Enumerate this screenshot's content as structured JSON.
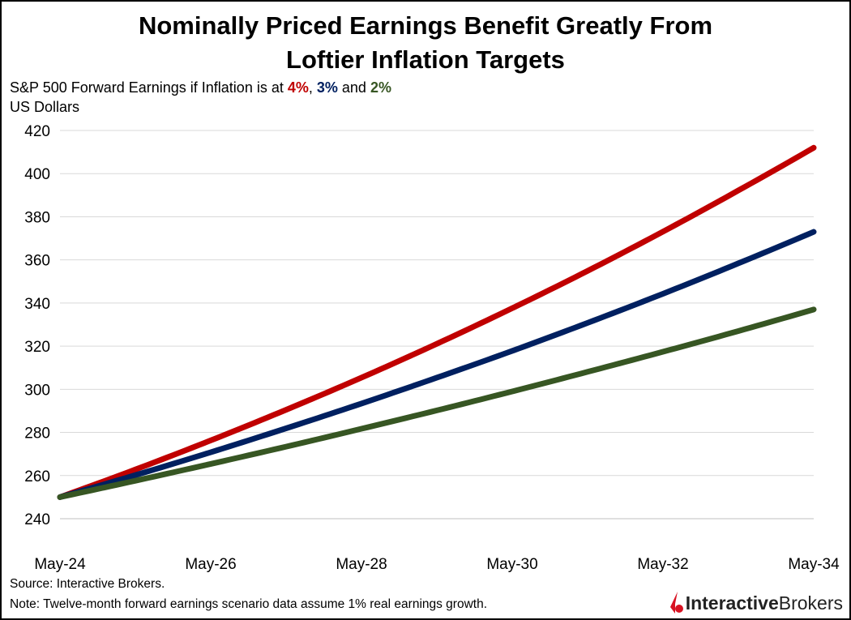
{
  "chart_data": {
    "type": "line",
    "title_line1": "Nominally Priced Earnings Benefit Greatly From",
    "title_line2": "Loftier Inflation Targets",
    "subtitle_prefix": "S&P 500 Forward Earnings if Inflation is at ",
    "subtitle_4": "4%",
    "subtitle_sep1": ", ",
    "subtitle_3": "3%",
    "subtitle_and": " and ",
    "subtitle_2": "2%",
    "ylabel": "US Dollars",
    "ylim": [
      240,
      420
    ],
    "yticks": [
      240,
      260,
      280,
      300,
      320,
      340,
      360,
      380,
      400,
      420
    ],
    "xticks": [
      "May-24",
      "May-26",
      "May-28",
      "May-30",
      "May-32",
      "May-34"
    ],
    "x": [
      "May-24",
      "May-25",
      "May-26",
      "May-27",
      "May-28",
      "May-29",
      "May-30",
      "May-31",
      "May-32",
      "May-33",
      "May-34"
    ],
    "grid": true,
    "series": [
      {
        "key": "4%",
        "color": "#c00000",
        "values": [
          250,
          262.8,
          276.3,
          290.5,
          305.4,
          321.1,
          337.6,
          354.9,
          373.1,
          392.2,
          412
        ]
      },
      {
        "key": "3%",
        "color": "#002060",
        "values": [
          250,
          260.2,
          270.8,
          281.9,
          293.4,
          305.4,
          317.8,
          330.8,
          344.3,
          358.4,
          373
        ]
      },
      {
        "key": "2%",
        "color": "#375623",
        "values": [
          250,
          257.6,
          265.4,
          273.4,
          281.7,
          290.2,
          299.0,
          308.1,
          317.4,
          327.0,
          337
        ]
      }
    ]
  },
  "footer": {
    "source": "Source: Interactive Brokers.",
    "note": "Note: Twelve-month forward earnings scenario data assume 1% real earnings growth."
  },
  "logo": {
    "part1": "Interactive",
    "part2": "Brokers",
    "color": "#d81222"
  }
}
